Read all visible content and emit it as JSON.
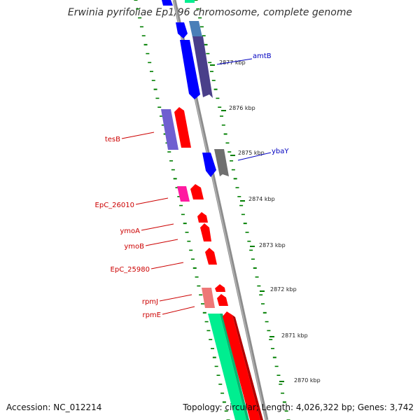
{
  "title": "Erwinia pyrifoliae Ep1/96 chromosome, complete genome",
  "footer": {
    "accession": "Accession: NC_012214",
    "topology": "Topology: circular; Length: 4,026,322 bp; Genes: 3,742"
  },
  "colors": {
    "backbone": "#8c8c8c",
    "tick": "#007f00",
    "label_forward": "#0000c0",
    "label_reverse": "#cc0000",
    "gene_blue": "#0000ff",
    "gene_red": "#ff0000",
    "gene_green": "#00ee90",
    "gene_purple": "#6f5fd0",
    "gene_pink": "#ff1aa0",
    "gene_salmon": "#ee7777",
    "gene_steel": "#4a7fb8",
    "gene_slate": "#4a3f8a",
    "gene_gray": "#6f6f6f"
  },
  "scale": {
    "unit": "kbp",
    "labels": [
      "2877 kbp",
      "2876 kbp",
      "2875 kbp",
      "2874 kbp",
      "2873 kbp",
      "2872 kbp",
      "2871 kbp",
      "2870 kbp"
    ]
  },
  "gene_labels": [
    {
      "id": "amtB",
      "text": "amtB",
      "strand": "forward"
    },
    {
      "id": "ybaY",
      "text": "ybaY",
      "strand": "forward"
    },
    {
      "id": "tesB",
      "text": "tesB",
      "strand": "reverse"
    },
    {
      "id": "EpC_26010",
      "text": "EpC_26010",
      "strand": "reverse"
    },
    {
      "id": "ymoA",
      "text": "ymoA",
      "strand": "reverse"
    },
    {
      "id": "ymoB",
      "text": "ymoB",
      "strand": "reverse"
    },
    {
      "id": "EpC_25980",
      "text": "EpC_25980",
      "strand": "reverse"
    },
    {
      "id": "rpmJ",
      "text": "rpmJ",
      "strand": "reverse"
    },
    {
      "id": "rpmE",
      "text": "rpmE",
      "strand": "reverse"
    }
  ]
}
